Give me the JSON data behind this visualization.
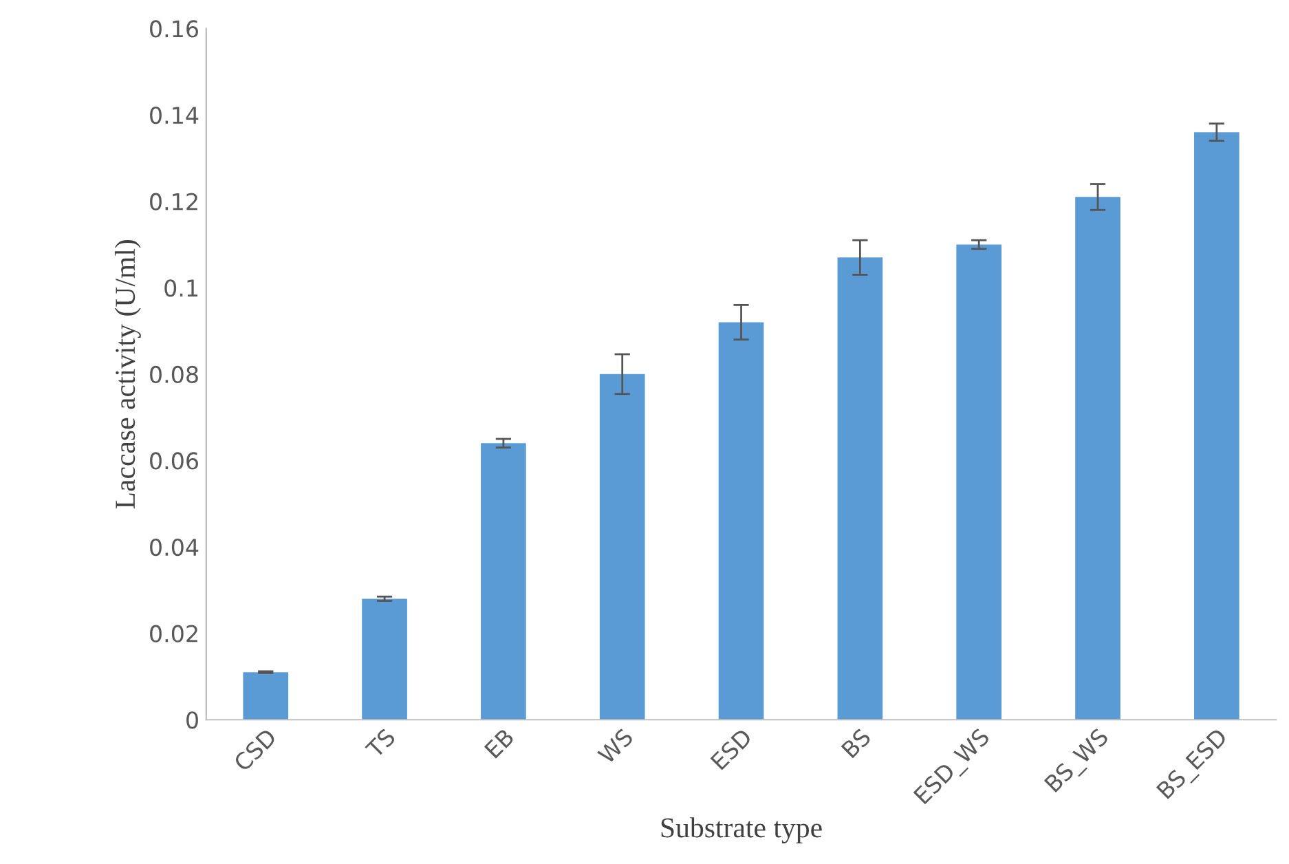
{
  "chart_data": {
    "type": "bar",
    "xlabel": "Substrate type",
    "ylabel": "Laccase activity (U/ml)",
    "categories": [
      "CSD",
      "TS",
      "EB",
      "WS",
      "ESD",
      "BS",
      "ESD_WS",
      "BS_WS",
      "BS_ESD"
    ],
    "values": [
      0.011,
      0.028,
      0.064,
      0.08,
      0.092,
      0.107,
      0.11,
      0.121,
      0.136
    ],
    "errors": [
      0.0002,
      0.0005,
      0.001,
      0.0046,
      0.004,
      0.004,
      0.001,
      0.003,
      0.002
    ],
    "color": "#5b9bd5",
    "ylim": [
      0,
      0.16
    ],
    "yticks": [
      {
        "value": 0,
        "label": "0"
      },
      0.02,
      0.04,
      0.06,
      0.08,
      {
        "value": 0.1,
        "label": "0.1"
      },
      0.12,
      0.14,
      0.16
    ],
    "grid": false,
    "legend": false
  }
}
